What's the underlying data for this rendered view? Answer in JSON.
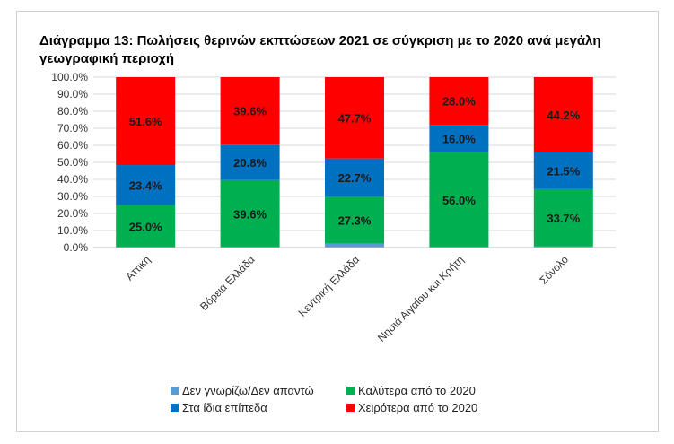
{
  "chart_data": {
    "type": "bar",
    "stacked": true,
    "title": "Διάγραμμα 13: Πωλήσεις θερινών εκπτώσεων 2021 σε σύγκριση με το 2020 ανά μεγάλη γεωγραφική περιοχή",
    "categories": [
      "Αττική",
      "Βόρεια Ελλάδα",
      "Κεντρική Ελλάδα",
      "Νησιά Αιγαίου και Κρήτη",
      "Σύνολο"
    ],
    "ylim": [
      0,
      100
    ],
    "yticks": [
      "0.0%",
      "10.0%",
      "20.0%",
      "30.0%",
      "40.0%",
      "50.0%",
      "60.0%",
      "70.0%",
      "80.0%",
      "90.0%",
      "100.0%"
    ],
    "legend_position": "bottom",
    "grid": true,
    "series": [
      {
        "name": "Δεν γνωρίζω/Δεν απαντώ",
        "color": "#5B9BD5",
        "values": [
          0.0,
          0.0,
          2.3,
          0.0,
          0.6
        ],
        "labels": [
          "",
          "",
          "",
          "",
          ""
        ]
      },
      {
        "name": "Καλύτερα από το 2020",
        "color": "#00B050",
        "values": [
          25.0,
          39.6,
          27.3,
          56.0,
          33.7
        ],
        "labels": [
          "25.0%",
          "39.6%",
          "27.3%",
          "56.0%",
          "33.7%"
        ]
      },
      {
        "name": "Στα ίδια επίπεδα",
        "color": "#0070C0",
        "values": [
          23.4,
          20.8,
          22.7,
          16.0,
          21.5
        ],
        "labels": [
          "23.4%",
          "20.8%",
          "22.7%",
          "16.0%",
          "21.5%"
        ]
      },
      {
        "name": "Χειρότερα από το 2020",
        "color": "#FF0000",
        "values": [
          51.6,
          39.6,
          47.7,
          28.0,
          44.2
        ],
        "labels": [
          "51.6%",
          "39.6%",
          "47.7%",
          "28.0%",
          "44.2%"
        ]
      }
    ]
  }
}
